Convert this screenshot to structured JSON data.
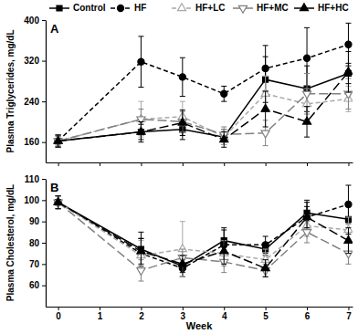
{
  "chart_data": [
    {
      "type": "line",
      "title": "A",
      "y_label": "Plasma Triglycerides, mg/dL",
      "x": [
        0,
        2,
        3,
        4,
        5,
        6,
        7
      ],
      "xlim": [
        -0.3,
        7.1
      ],
      "xticks": [
        0,
        1,
        2,
        3,
        4,
        5,
        6,
        7
      ],
      "ylim": [
        120,
        400
      ],
      "yticks": [
        160,
        240,
        320,
        400
      ],
      "tick_labels": "y",
      "legend": "top",
      "series": [
        {
          "name": "Control",
          "color": "#000000",
          "marker": "square",
          "line_style": "solid",
          "values": [
            162,
            180,
            185,
            170,
            283,
            265,
            295
          ],
          "errors": [
            10,
            15,
            20,
            15,
            45,
            45,
            20
          ]
        },
        {
          "name": "HF",
          "color": "#000000",
          "marker": "circle",
          "line_style": "dashed",
          "values": [
            162,
            318,
            288,
            255,
            305,
            325,
            352
          ],
          "errors": [
            12,
            50,
            38,
            15,
            45,
            60,
            42
          ]
        },
        {
          "name": "HF+LC",
          "color": "#a8a8a8",
          "marker": "triangle-open",
          "line_style": "dashed",
          "values": [
            162,
            205,
            210,
            170,
            255,
            235,
            245
          ],
          "errors": [
            12,
            35,
            30,
            15,
            35,
            30,
            25
          ]
        },
        {
          "name": "HF+MC",
          "color": "#808080",
          "marker": "triangle-down-open",
          "line_style": "long-dashed",
          "values": [
            162,
            205,
            200,
            175,
            178,
            255,
            255
          ],
          "errors": [
            12,
            20,
            20,
            15,
            25,
            40,
            30
          ]
        },
        {
          "name": "HF+HC",
          "color": "#000000",
          "marker": "triangle",
          "line_style": "long-dashed",
          "values": [
            162,
            180,
            198,
            165,
            225,
            200,
            298
          ],
          "errors": [
            12,
            20,
            25,
            15,
            35,
            30,
            40
          ]
        }
      ]
    },
    {
      "type": "line",
      "title": "B",
      "x_label": "Week",
      "y_label": "Plasma Cholesterol, mg/dL",
      "x": [
        0,
        2,
        3,
        4,
        5,
        6,
        7
      ],
      "xlim": [
        -0.3,
        7.1
      ],
      "xticks": [
        0,
        1,
        2,
        3,
        4,
        5,
        6,
        7
      ],
      "ylim": [
        50,
        110
      ],
      "yticks": [
        60,
        70,
        80,
        90,
        100,
        110
      ],
      "series": [
        {
          "color": "#000000",
          "marker": "square",
          "line_style": "solid",
          "values": [
            99,
            77,
            69,
            81,
            77,
            94,
            91
          ],
          "errors": [
            3,
            8,
            5,
            6,
            3,
            6,
            7
          ]
        },
        {
          "color": "#000000",
          "marker": "circle",
          "line_style": "dashed",
          "values": [
            99,
            75,
            68,
            79,
            79,
            92,
            98
          ],
          "errors": [
            3,
            7,
            4,
            7,
            4,
            7,
            9
          ]
        },
        {
          "color": "#a8a8a8",
          "marker": "triangle-open",
          "line_style": "dashed",
          "values": [
            99,
            74,
            77,
            75,
            72,
            88,
            86
          ],
          "errors": [
            3,
            7,
            13,
            6,
            5,
            5,
            6
          ]
        },
        {
          "color": "#808080",
          "marker": "triangle-down-open",
          "line_style": "long-dashed",
          "values": [
            99,
            67,
            73,
            71,
            67,
            85,
            75
          ],
          "errors": [
            3,
            5,
            4,
            5,
            3,
            5,
            5
          ]
        },
        {
          "color": "#000000",
          "marker": "triangle",
          "line_style": "long-dashed",
          "values": [
            99,
            76,
            70,
            76,
            68,
            92,
            81
          ],
          "errors": [
            3,
            6,
            4,
            6,
            4,
            5,
            6
          ]
        }
      ]
    }
  ]
}
